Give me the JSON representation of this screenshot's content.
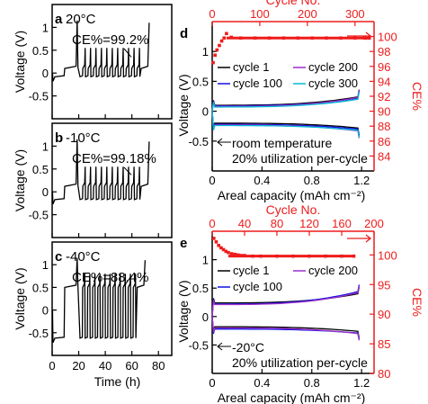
{
  "chart_data": [
    {
      "panel_label": "a",
      "type": "line",
      "annotations": [
        "20°C",
        "CE%=99.2%"
      ],
      "ylabel": "Voltage (V)",
      "ylim": [
        -1,
        1.5
      ],
      "yticks": [
        -0.5,
        0,
        0.5,
        1
      ],
      "xlim": [
        0,
        90
      ],
      "xticks": [
        0,
        20,
        40,
        60,
        80
      ],
      "series": [
        {
          "plating_voltage": -0.08,
          "stripping_voltage": 0.1,
          "cycles": 11,
          "cycling_start": 21,
          "cycling_end": 66
        }
      ]
    },
    {
      "panel_label": "b",
      "type": "line",
      "annotations": [
        "-10°C",
        "CE%=99.18%"
      ],
      "ylabel": "Voltage (V)",
      "ylim": [
        -1,
        1.5
      ],
      "yticks": [
        -0.5,
        0,
        0.5,
        1
      ],
      "xlim": [
        0,
        90
      ],
      "xticks": [
        0,
        20,
        40,
        60,
        80
      ],
      "series": [
        {
          "plating_voltage": -0.17,
          "stripping_voltage": 0.12,
          "cycles": 11,
          "cycling_start": 21,
          "cycling_end": 66
        }
      ]
    },
    {
      "panel_label": "c",
      "type": "line",
      "annotations": [
        "-40°C",
        "CE%=88.4%"
      ],
      "ylabel": "Voltage (V)",
      "ylim": [
        -1,
        1.5
      ],
      "yticks": [
        -0.5,
        0,
        0.5,
        1
      ],
      "xlabel": "Time (h)",
      "xlim": [
        0,
        90
      ],
      "xticks": [
        0,
        20,
        40,
        60,
        80
      ],
      "series": [
        {
          "plating_voltage": -0.62,
          "stripping_voltage": 0.5,
          "cycles": 11,
          "cycling_start": 21,
          "cycling_end": 63
        }
      ]
    },
    {
      "panel_label": "d",
      "type": "line",
      "xlabel": "Areal capacity (mAh cm⁻²)",
      "xlim": [
        0,
        1.3
      ],
      "xticks": [
        0,
        0.4,
        0.8,
        1.2
      ],
      "ylabel": "Voltage (V)",
      "ylim": [
        -1,
        1.5
      ],
      "yticks": [
        -0.5,
        0,
        0.5,
        1
      ],
      "x2label": "Cycle No.",
      "x2lim": [
        0,
        340
      ],
      "x2ticks": [
        0,
        100,
        200,
        300
      ],
      "y2label": "CE%",
      "y2lim": [
        82,
        102
      ],
      "y2ticks": [
        84,
        86,
        88,
        90,
        92,
        94,
        96,
        98,
        100
      ],
      "annotations": [
        "room temperature",
        "20% utilization per-cycle"
      ],
      "legend": [
        {
          "name": "cycle 1",
          "color": "#000000"
        },
        {
          "name": "cycle 200",
          "color": "#9b30c8"
        },
        {
          "name": "cycle 100",
          "color": "#1010e0"
        },
        {
          "name": "cycle 300",
          "color": "#00bcd4"
        }
      ],
      "charge_curves": [
        {
          "color": "#000000",
          "y_start": 0.1,
          "y_end": 0.24
        },
        {
          "color": "#1010e0",
          "y_start": 0.09,
          "y_end": 0.22
        },
        {
          "color": "#9b30c8",
          "y_start": 0.08,
          "y_end": 0.23
        },
        {
          "color": "#00bcd4",
          "y_start": 0.07,
          "y_end": 0.2
        }
      ],
      "discharge_curves": [
        {
          "color": "#000000",
          "y_start": -0.2,
          "y_end": -0.28
        },
        {
          "color": "#1010e0",
          "y_start": -0.22,
          "y_end": -0.3
        },
        {
          "color": "#9b30c8",
          "y_start": -0.23,
          "y_end": -0.33
        },
        {
          "color": "#00bcd4",
          "y_start": -0.24,
          "y_end": -0.32
        }
      ],
      "ce_points": {
        "color": "#ee1c1c",
        "x": [
          2,
          6,
          10,
          15,
          20,
          25,
          30,
          40,
          60,
          90,
          120,
          150,
          180,
          210,
          240,
          270,
          300,
          320,
          330
        ],
        "y": [
          96.5,
          97.5,
          98.2,
          98.8,
          99.4,
          99.8,
          100.4,
          99.9,
          99.8,
          99.8,
          99.8,
          99.8,
          99.8,
          99.8,
          99.8,
          99.8,
          99.8,
          99.8,
          99.8
        ]
      }
    },
    {
      "panel_label": "e",
      "type": "line",
      "xlabel": "Areal capacity (mAh cm⁻²)",
      "xlim": [
        0,
        1.3
      ],
      "xticks": [
        0,
        0.4,
        0.8,
        1.2
      ],
      "ylabel": "Voltage (V)",
      "ylim": [
        -1,
        1.5
      ],
      "yticks": [
        -0.5,
        0,
        0.5,
        1
      ],
      "x2label": "Cycle No.",
      "x2lim": [
        0,
        200
      ],
      "x2ticks": [
        0,
        40,
        80,
        120,
        160,
        200
      ],
      "y2label": "CE%",
      "y2lim": [
        80,
        104
      ],
      "y2ticks": [
        80,
        85,
        90,
        95,
        100
      ],
      "annotations": [
        "-20°C",
        "20% utilization per-cycle"
      ],
      "legend": [
        {
          "name": "cycle 1",
          "color": "#000000"
        },
        {
          "name": "cycle 200",
          "color": "#9b30c8"
        },
        {
          "name": "cycle 100",
          "color": "#1010e0"
        }
      ],
      "charge_curves": [
        {
          "color": "#000000",
          "y_start": 0.24,
          "y_end": 0.4
        },
        {
          "color": "#1010e0",
          "y_start": 0.22,
          "y_end": 0.44
        },
        {
          "color": "#9b30c8",
          "y_start": 0.21,
          "y_end": 0.42
        }
      ],
      "discharge_curves": [
        {
          "color": "#000000",
          "y_start": -0.18,
          "y_end": -0.26
        },
        {
          "color": "#1010e0",
          "y_start": -0.22,
          "y_end": -0.29
        },
        {
          "color": "#9b30c8",
          "y_start": -0.2,
          "y_end": -0.3
        }
      ],
      "ce_points": {
        "color": "#ee1c1c",
        "x": [
          2,
          5,
          8,
          11,
          14,
          17,
          20,
          24,
          28,
          32,
          36,
          40,
          50,
          60,
          80,
          100,
          120,
          140,
          160,
          175
        ],
        "y": [
          102.8,
          102.2,
          101.6,
          101.2,
          100.9,
          100.6,
          100.4,
          100.2,
          100.1,
          100,
          99.9,
          99.9,
          99.8,
          99.8,
          99.8,
          99.8,
          99.8,
          99.8,
          99.8,
          99.8
        ]
      }
    }
  ]
}
